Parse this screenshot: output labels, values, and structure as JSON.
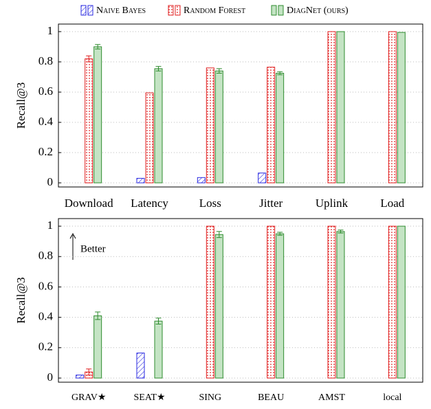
{
  "chart_data": [
    {
      "type": "bar",
      "ylabel": "Recall@3",
      "categories": [
        "Download",
        "Latency",
        "Loss",
        "Jitter",
        "Uplink",
        "Load"
      ],
      "series": [
        {
          "name": "Naive Bayes",
          "color": "#2a2ae0",
          "values": [
            0,
            0.03,
            0.035,
            0.065,
            0,
            0
          ],
          "errors": [
            null,
            null,
            null,
            null,
            null,
            null
          ]
        },
        {
          "name": "Random Forest",
          "color": "#e02020",
          "values": [
            0.82,
            0.595,
            0.76,
            0.765,
            1.0,
            1.0
          ],
          "errors": [
            0.02,
            null,
            null,
            null,
            null,
            null
          ]
        },
        {
          "name": "DiagNet (ours)",
          "color": "#2e8b2e",
          "values": [
            0.9,
            0.755,
            0.74,
            0.725,
            1.0,
            0.995
          ],
          "errors": [
            0.015,
            0.015,
            0.015,
            0.01,
            null,
            null
          ]
        }
      ],
      "ylim": [
        0,
        1.05
      ],
      "yticks": [
        0,
        0.2,
        0.4,
        0.6,
        0.8,
        1
      ],
      "grid": true
    },
    {
      "type": "bar",
      "ylabel": "Recall@3",
      "annotation": "Better",
      "categories": [
        "GRAV★",
        "SEAT★",
        "SING",
        "BEAU",
        "AMST",
        "local"
      ],
      "series": [
        {
          "color": "#2a2ae0",
          "values": [
            0.02,
            0.165,
            0,
            0,
            0,
            0
          ],
          "errors": [
            null,
            null,
            null,
            null,
            null,
            null
          ]
        },
        {
          "color": "#e02020",
          "values": [
            0.04,
            0,
            1.0,
            1.0,
            1.0,
            1.0
          ],
          "errors": [
            0.02,
            null,
            null,
            null,
            null,
            null
          ]
        },
        {
          "color": "#2e8b2e",
          "values": [
            0.41,
            0.375,
            0.945,
            0.95,
            0.965,
            1.0
          ],
          "errors": [
            0.025,
            0.02,
            0.02,
            0.01,
            0.01,
            null
          ]
        }
      ],
      "ylim": [
        0,
        1.05
      ],
      "yticks": [
        0,
        0.2,
        0.4,
        0.6,
        0.8,
        1
      ],
      "grid": true
    }
  ]
}
